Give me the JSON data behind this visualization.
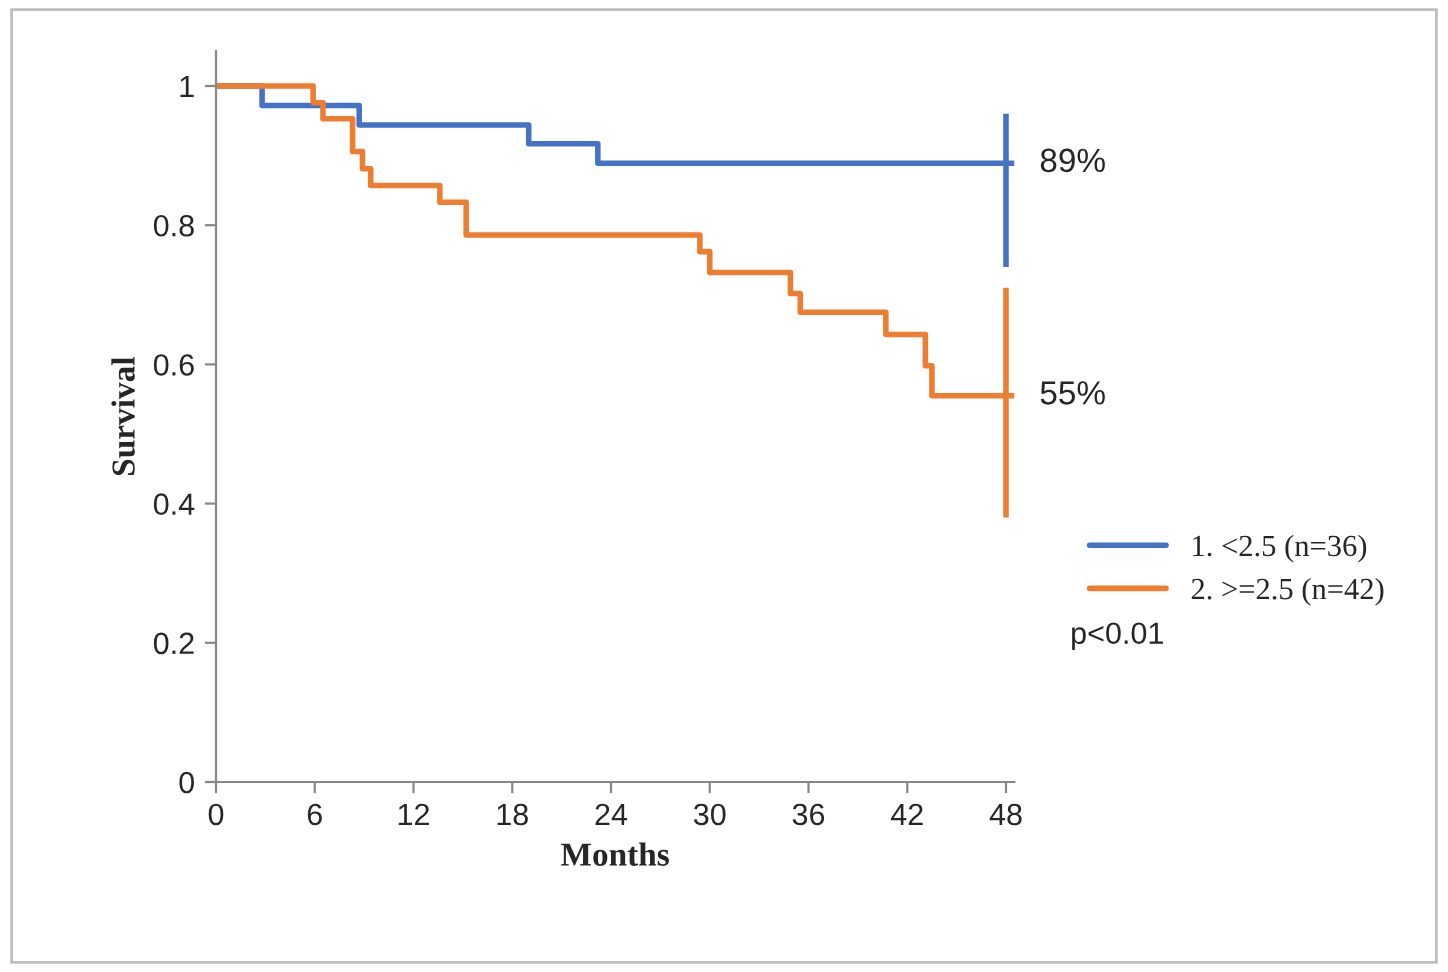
{
  "chart_data": {
    "type": "step",
    "xlabel": "Months",
    "ylabel": "Survival",
    "xlim": [
      0,
      48.5
    ],
    "ylim": [
      0,
      1.05
    ],
    "xticks": [
      0,
      6,
      12,
      18,
      24,
      30,
      36,
      42,
      48
    ],
    "yticks": [
      0,
      {
        "value": 0.2,
        "label": "0.2"
      },
      {
        "value": 0.4,
        "label": "0.4"
      },
      {
        "value": 0.6,
        "label": "0.6"
      },
      {
        "value": 0.8,
        "label": "0.8"
      },
      1
    ],
    "grid": false,
    "legend": "right",
    "marker": "none",
    "line_style": "solid",
    "series": [
      {
        "name": "1. <2.5 (n=36)",
        "color": "#4472c4",
        "x": [
          0,
          2.8,
          8.7,
          19,
          23.2,
          48
        ],
        "values": [
          1,
          0.972,
          0.944,
          0.917,
          0.889,
          0.889
        ],
        "errors": [
          null,
          null,
          null,
          null,
          null,
          [
            0.74,
            0.96
          ]
        ]
      },
      {
        "name": "2. >=2.5 (n=42)",
        "color": "#ed7d31",
        "x": [
          0,
          5.9,
          6.5,
          8.3,
          8.9,
          9.4,
          13.6,
          15.2,
          29.4,
          30,
          34.9,
          35.5,
          40.7,
          43.1,
          43.5,
          48
        ],
        "values": [
          1,
          0.976,
          0.953,
          0.906,
          0.881,
          0.857,
          0.833,
          0.786,
          0.762,
          0.732,
          0.702,
          0.675,
          0.643,
          0.598,
          0.555,
          0.555
        ],
        "errors": [
          null,
          null,
          null,
          null,
          null,
          null,
          null,
          null,
          null,
          null,
          null,
          null,
          null,
          null,
          null,
          [
            0.38,
            0.71
          ]
        ]
      }
    ],
    "annotations": [
      {
        "text": "89%",
        "x": 48,
        "y": 0.889
      },
      {
        "text": "55%",
        "x": 48,
        "y": 0.555
      },
      "p<0.01"
    ]
  }
}
